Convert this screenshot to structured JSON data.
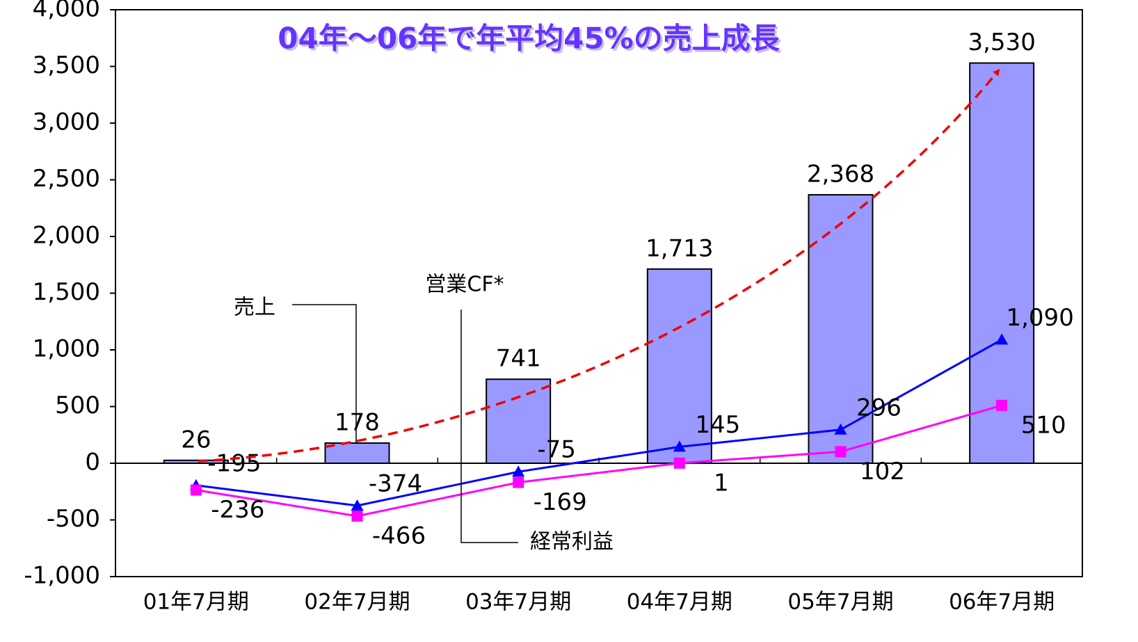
{
  "chart_data": {
    "type": "bar",
    "title": "04年～06年で年平均45%の売上成長",
    "categories": [
      "01年7月期",
      "02年7月期",
      "03年7月期",
      "04年7月期",
      "05年7月期",
      "06年7月期"
    ],
    "series": [
      {
        "name": "売上",
        "type": "bar",
        "color": "#9999ff",
        "values": [
          26,
          178,
          741,
          1713,
          2368,
          3530
        ],
        "value_labels": [
          "26",
          "178",
          "741",
          "1,713",
          "2,368",
          "3,530"
        ]
      },
      {
        "name": "営業CF*",
        "type": "line",
        "marker": "triangle",
        "color": "#0000ff",
        "values": [
          -195,
          -374,
          -75,
          145,
          296,
          1090
        ],
        "value_labels": [
          "-195",
          "-374",
          "-75",
          "145",
          "296",
          "1,090"
        ]
      },
      {
        "name": "経常利益",
        "type": "line",
        "marker": "square",
        "color": "#ff00ff",
        "values": [
          -236,
          -466,
          -169,
          1,
          102,
          510
        ],
        "value_labels": [
          "-236",
          "-466",
          "-169",
          "1",
          "102",
          "510"
        ]
      }
    ],
    "ylim": [
      -1000,
      4000
    ],
    "yticks": [
      {
        "value": -1000,
        "label": "-1,000"
      },
      -500,
      0,
      500,
      {
        "value": 1000,
        "label": "1,000"
      },
      {
        "value": 1500,
        "label": "1,500"
      },
      {
        "value": 2000,
        "label": "2,000"
      },
      {
        "value": 2500,
        "label": "2,500"
      },
      {
        "value": 3000,
        "label": "3,000"
      },
      {
        "value": 3500,
        "label": "3,500"
      },
      {
        "value": 4000,
        "label": "4,000"
      }
    ],
    "grid": false
  }
}
